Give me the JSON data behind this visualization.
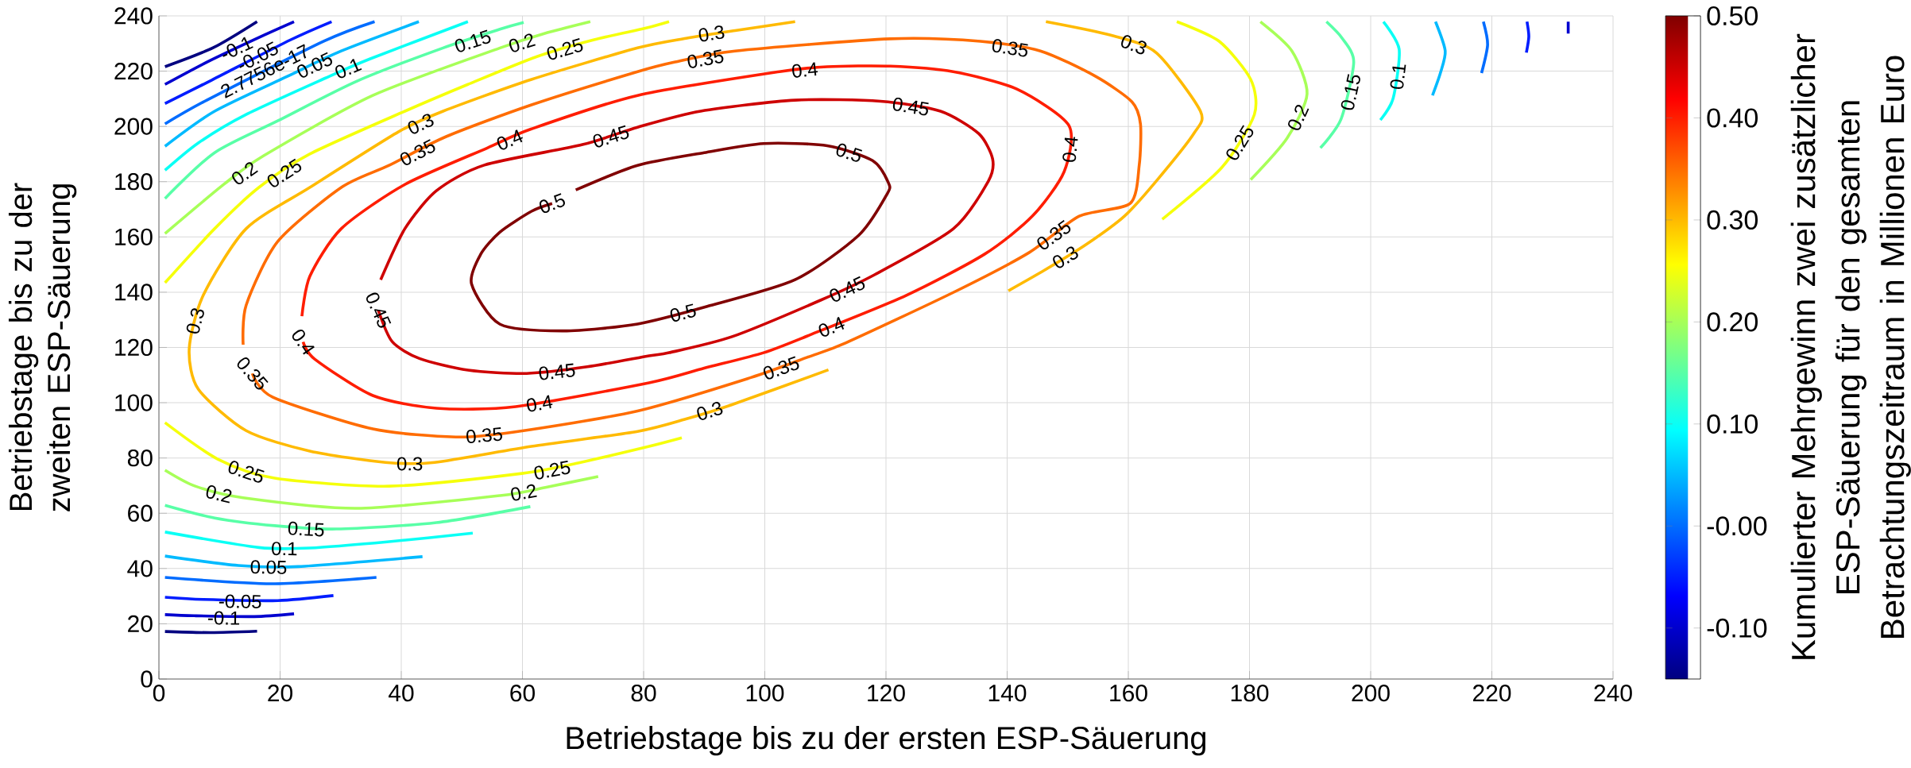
{
  "chart_data": {
    "type": "line",
    "xlabel": "Betriebstage bis zu der ersten ESP-Säuerung",
    "ylabel": "Betriebstage bis zu der zweiten ESP-Säuerung",
    "clabel": "Kumulierter Mehrgewinn zwei zusätzlicher ESP-Säuerung für den gesamten Betrachtungszeitraum in Millionen Euro",
    "xlim": [
      0,
      240
    ],
    "ylim": [
      0,
      240
    ],
    "xticks": [
      0,
      20,
      40,
      60,
      80,
      100,
      120,
      140,
      160,
      180,
      200,
      220,
      240
    ],
    "yticks": [
      0,
      20,
      40,
      60,
      80,
      100,
      120,
      140,
      160,
      180,
      200,
      220,
      240
    ],
    "grid": true,
    "clim": [
      -0.15,
      0.5
    ],
    "cticks": [
      {
        "value": -0.1,
        "label": "-0.10"
      },
      {
        "value": 0,
        "label": "-0.00"
      },
      {
        "value": 0.1,
        "label": "0.10"
      },
      {
        "value": 0.2,
        "label": "0.20"
      },
      {
        "value": 0.3,
        "label": "0.30"
      },
      {
        "value": 0.4,
        "label": "0.40"
      },
      {
        "value": 0.5,
        "label": "0.50"
      }
    ],
    "series": [
      {
        "color": "#800000",
        "x": [
          68.8,
          79,
          90,
          99.8,
          110.3,
          117.8,
          120.4,
          120.2,
          115.5,
          105,
          90.4,
          79,
          66.8,
          56.3,
          51.6,
          53.1,
          56.3,
          61.5,
          64.9
        ],
        "values": [
          177,
          185.9,
          190.5,
          193.8,
          193,
          187.6,
          179.6,
          175.6,
          160.6,
          144.5,
          134.8,
          128.5,
          126,
          128.4,
          143,
          153.7,
          161.8,
          169.3,
          172.1
        ]
      },
      {
        "color": "#ce0000",
        "x": [
          36.6,
          40.6,
          45.8,
          53.7,
          69.9,
          79,
          89.4,
          105,
          119.1,
          129,
          135.3,
          137.6,
          136.9,
          131.1,
          118.1,
          109.2,
          94.6,
          84.2,
          80.9,
          70.7,
          60.7,
          51,
          43,
          38.5,
          36.2
        ],
        "values": [
          144.5,
          163,
          176.7,
          186,
          193.4,
          199.7,
          205.5,
          209.5,
          209.1,
          205.5,
          197.4,
          188.2,
          180.2,
          162.9,
          146.3,
          137.1,
          123.9,
          118.1,
          117,
          113,
          110.6,
          111.8,
          116,
          122.1,
          133.5
        ]
      },
      {
        "color": "#ff1d00",
        "x": [
          23.6,
          24.9,
          30.1,
          40.6,
          54.2,
          61.5,
          79,
          102.4,
          110.3,
          120.7,
          131.1,
          141.6,
          150.2,
          149.4,
          144.2,
          136.3,
          123.3,
          107.4,
          99.8,
          90,
          80.9,
          58.9,
          45.8,
          35.3,
          25.7,
          23.8
        ],
        "values": [
          131.3,
          145.7,
          163,
          179,
          192.2,
          199.1,
          211.2,
          219.8,
          221.6,
          221.8,
          219.8,
          213.5,
          200.3,
          183.6,
          167.6,
          153.8,
          138.8,
          124.5,
          118.1,
          112.5,
          107.2,
          98.6,
          98,
          102.6,
          115.8,
          122
        ]
      },
      {
        "color": "#ff6c00",
        "x": [
          13.9,
          14.4,
          19.6,
          30.1,
          38,
          47.4,
          61.5,
          79,
          85.2,
          95.1,
          120.7,
          135.6,
          145.5,
          154.6,
          160.6,
          162,
          161.8,
          160.3,
          151.9,
          143.6,
          131.1,
          113.4,
          107.1,
          97.7,
          79,
          58.6,
          49,
          35.3,
          18.8,
          15.4
        ],
        "values": [
          121,
          135.3,
          158.3,
          177.9,
          185.9,
          196.3,
          207.8,
          219.8,
          223.3,
          227.3,
          231.7,
          230.8,
          227.3,
          218.1,
          208.9,
          200.9,
          186,
          172.1,
          167.5,
          154.3,
          139.9,
          121.7,
          116.5,
          109.1,
          97,
          89.4,
          87.6,
          90.5,
          102,
          110.6
        ]
      },
      {
        "color": "#ffba00",
        "x": [
          105,
          95.1,
          87,
          79,
          61.5,
          46.9,
          39.5,
          24.9,
          14.4,
          7.3,
          5,
          6.5,
          14.4,
          24.9,
          37.4,
          45.5,
          61.5,
          79,
          87,
          94.6,
          110.5
        ],
        "values": [
          237.9,
          234.7,
          231.9,
          228.4,
          217,
          205.5,
          198,
          177.9,
          163,
          138.8,
          119.5,
          104.9,
          89.9,
          82.5,
          78.4,
          78.4,
          84.2,
          89.6,
          94.1,
          99.3,
          111.9
        ]
      },
      {
        "color": "#ffba00",
        "x": [
          146.4,
          157.1,
          164.6,
          171.9,
          170.8,
          164.6,
          159.4,
          153,
          146.2,
          140.2
        ],
        "values": [
          237.9,
          233,
          226.7,
          205.5,
          197.4,
          180.2,
          167.6,
          157.2,
          148,
          140.5
        ]
      },
      {
        "color": "#f5ff0a",
        "x": [
          1,
          9.2,
          16.5,
          24.9,
          40.6,
          51,
          62.3,
          71.7,
          80.4,
          84.2
        ],
        "values": [
          143.4,
          163,
          177.9,
          190,
          205.5,
          215.2,
          225.2,
          231.3,
          235.6,
          237.9
        ]
      },
      {
        "color": "#f5ff0a",
        "x": [
          168,
          175,
          180.2,
          180.8,
          175.5,
          165.6
        ],
        "values": [
          237.9,
          230.8,
          217,
          204.3,
          185.3,
          166.4
        ]
      },
      {
        "color": "#f5ff0a",
        "x": [
          1,
          9.7,
          19.1,
          38,
          59.9,
          69.6,
          80.9,
          86.3
        ],
        "values": [
          92.8,
          79.6,
          72.7,
          69.8,
          74.4,
          78.4,
          84.2,
          87.3
        ]
      },
      {
        "color": "#a7ff58",
        "x": [
          1,
          10.7,
          17.3,
          35.3,
          56.3,
          63.6,
          71.2
        ],
        "values": [
          161.2,
          179,
          189.4,
          211.2,
          228.4,
          233.6,
          237.9
        ]
      },
      {
        "color": "#a7ff58",
        "x": [
          181.8,
          187,
          189.5,
          186.2,
          180.2
        ],
        "values": [
          237.9,
          227.3,
          211.8,
          195.7,
          180.7
        ]
      },
      {
        "color": "#a7ff58",
        "x": [
          1,
          6,
          13.9,
          32.7,
          56.3,
          64.1,
          72.5
        ],
        "values": [
          75.6,
          69.8,
          65.6,
          61.8,
          66.4,
          69.5,
          73.3
        ]
      },
      {
        "color": "#58ffa7",
        "x": [
          1,
          9.2,
          19.6,
          32.7,
          46.9,
          56.5,
          60.2
        ],
        "values": [
          173.9,
          190.5,
          202,
          216.4,
          228.4,
          235.3,
          237.6
        ]
      },
      {
        "color": "#58ffa7",
        "x": [
          192.7,
          195.3,
          197.2,
          195.1,
          191.7
        ],
        "values": [
          237.9,
          231.9,
          223.3,
          202.6,
          192.2
        ]
      },
      {
        "color": "#58ffa7",
        "x": [
          1,
          9.2,
          19.1,
          29.3,
          45.8,
          61.3
        ],
        "values": [
          62.9,
          58.3,
          55.5,
          54.3,
          56.6,
          62.4
        ]
      },
      {
        "color": "#0afff5",
        "x": [
          1,
          6.5,
          14.4,
          27.5,
          34.8,
          51
        ],
        "values": [
          184.1,
          194,
          204.3,
          217.5,
          224.4,
          237.9
        ]
      },
      {
        "color": "#0afff5",
        "x": [
          202.1,
          204.7,
          203.7,
          201.6
        ],
        "values": [
          237.9,
          227.9,
          210.1,
          202.3
        ]
      },
      {
        "color": "#0afff5",
        "x": [
          1,
          16.5,
          24.9,
          38,
          51.8
        ],
        "values": [
          53.2,
          47.6,
          47.4,
          49.7,
          52.8
        ]
      },
      {
        "color": "#00baff",
        "x": [
          1,
          9.2,
          21.2,
          30.1,
          42.9
        ],
        "values": [
          192.8,
          205.5,
          218.1,
          227.3,
          237.9
        ]
      },
      {
        "color": "#00baff",
        "x": [
          210.7,
          212.3,
          211.5,
          210.2
        ],
        "values": [
          237.9,
          227.3,
          219.3,
          211.2
        ]
      },
      {
        "color": "#00baff",
        "x": [
          1,
          13.1,
          23,
          43.5
        ],
        "values": [
          44.5,
          41.1,
          40.7,
          44.3
        ]
      },
      {
        "color": "#006cff",
        "x": [
          1,
          7.9,
          27.2,
          35.6
        ],
        "values": [
          200.9,
          209.5,
          230.8,
          237.9
        ]
      },
      {
        "color": "#006cff",
        "x": [
          218.6,
          219.3,
          218.3
        ],
        "values": [
          237.9,
          229.6,
          219.3
        ]
      },
      {
        "color": "#006cff",
        "x": [
          1,
          18.6,
          35.9
        ],
        "values": [
          36.8,
          34.5,
          36.8
        ]
      },
      {
        "color": "#001dff",
        "x": [
          1,
          8.4,
          21.7,
          28.5
        ],
        "values": [
          208.3,
          216.4,
          231.3,
          237.9
        ]
      },
      {
        "color": "#001dff",
        "x": [
          225.8,
          226.1,
          225.7
        ],
        "values": [
          237.9,
          232.5,
          226.7
        ]
      },
      {
        "color": "#001dff",
        "x": [
          1,
          7.3,
          19.6,
          28.8
        ],
        "values": [
          29.6,
          28.8,
          28.4,
          30.2
        ]
      },
      {
        "color": "#0000cf",
        "x": [
          1,
          8.4,
          17.3,
          22.3
        ],
        "values": [
          215.2,
          223.8,
          233,
          237.9
        ]
      },
      {
        "color": "#0000cf",
        "x": [
          232.6,
          232.6
        ],
        "values": [
          237.9,
          233.6
        ]
      },
      {
        "color": "#0000cf",
        "x": [
          1,
          5.8,
          15.7,
          22.3
        ],
        "values": [
          23.3,
          22.9,
          22.6,
          23.6
        ]
      },
      {
        "color": "#000080",
        "x": [
          1,
          9,
          16.2
        ],
        "values": [
          221.6,
          228.5,
          237.9
        ]
      },
      {
        "color": "#000080",
        "x": [
          1,
          8.6,
          16.2
        ],
        "values": [
          17.2,
          16.8,
          17.3
        ]
      }
    ],
    "annotations": [
      {
        "text": "0.5",
        "x": 64.9,
        "y": 172.1
      },
      {
        "text": "0.5",
        "x": 113.9,
        "y": 190.5
      },
      {
        "text": "0.5",
        "x": 86.5,
        "y": 132.5
      },
      {
        "text": "0.45",
        "x": 36.2,
        "y": 133.5
      },
      {
        "text": "0.45",
        "x": 74.6,
        "y": 196.3
      },
      {
        "text": "0.45",
        "x": 124.1,
        "y": 207.2
      },
      {
        "text": "0.45",
        "x": 113.6,
        "y": 141
      },
      {
        "text": "0.45",
        "x": 65.7,
        "y": 111.2
      },
      {
        "text": "0.4",
        "x": 23.8,
        "y": 122
      },
      {
        "text": "0.4",
        "x": 57.9,
        "y": 195.1
      },
      {
        "text": "0.4",
        "x": 106.6,
        "y": 220.4
      },
      {
        "text": "0.4",
        "x": 150.4,
        "y": 191.7
      },
      {
        "text": "0.4",
        "x": 111,
        "y": 127.4
      },
      {
        "text": "0.4",
        "x": 62.8,
        "y": 99.7
      },
      {
        "text": "0.35",
        "x": 15.4,
        "y": 110.6
      },
      {
        "text": "0.35",
        "x": 42.7,
        "y": 190.5
      },
      {
        "text": "0.35",
        "x": 90.2,
        "y": 224.4
      },
      {
        "text": "0.35",
        "x": 140.5,
        "y": 228.4
      },
      {
        "text": "0.35",
        "x": 147.7,
        "y": 160.6
      },
      {
        "text": "0.35",
        "x": 102.7,
        "y": 112.5
      },
      {
        "text": "0.35",
        "x": 53.7,
        "y": 88.2
      },
      {
        "text": "0.3",
        "x": 6,
        "y": 129.6
      },
      {
        "text": "0.3",
        "x": 43.2,
        "y": 200.9
      },
      {
        "text": "0.3",
        "x": 91.2,
        "y": 233.6
      },
      {
        "text": "0.3",
        "x": 160.9,
        "y": 229.6
      },
      {
        "text": "0.3",
        "x": 149.6,
        "y": 152.6
      },
      {
        "text": "0.3",
        "x": 90.9,
        "y": 97
      },
      {
        "text": "0.3",
        "x": 41.4,
        "y": 77.9
      },
      {
        "text": "0.25",
        "x": 20.7,
        "y": 183
      },
      {
        "text": "0.25",
        "x": 67,
        "y": 227.9
      },
      {
        "text": "0.25",
        "x": 178.4,
        "y": 194
      },
      {
        "text": "0.25",
        "x": 14.4,
        "y": 75
      },
      {
        "text": "0.25",
        "x": 64.9,
        "y": 75.6
      },
      {
        "text": "0.2",
        "x": 14.1,
        "y": 183
      },
      {
        "text": "0.2",
        "x": 59.9,
        "y": 230.2
      },
      {
        "text": "0.2",
        "x": 188,
        "y": 203.2
      },
      {
        "text": "0.2",
        "x": 9.9,
        "y": 67
      },
      {
        "text": "0.2",
        "x": 60.2,
        "y": 67.5
      },
      {
        "text": "0.15",
        "x": 51.8,
        "y": 230.8
      },
      {
        "text": "0.15",
        "x": 196.7,
        "y": 212.4
      },
      {
        "text": "0.15",
        "x": 24.3,
        "y": 54.3
      },
      {
        "text": "0.1",
        "x": 31.2,
        "y": 221
      },
      {
        "text": "0.1",
        "x": 204.5,
        "y": 218.1
      },
      {
        "text": "0.1",
        "x": 20.7,
        "y": 47.2
      },
      {
        "text": "0.05",
        "x": 25.7,
        "y": 222.1
      },
      {
        "text": "0.05",
        "x": 18.1,
        "y": 40.5
      },
      {
        "text": "2.7756e-17",
        "x": 17.5,
        "y": 220
      },
      {
        "text": "-0.05",
        "x": 16.3,
        "y": 225.3
      },
      {
        "text": "-0.05",
        "x": 13.4,
        "y": 28.1
      },
      {
        "text": "-0.1",
        "x": 12.8,
        "y": 228.3
      },
      {
        "text": "-0.1",
        "x": 10.7,
        "y": 22.1
      }
    ]
  }
}
